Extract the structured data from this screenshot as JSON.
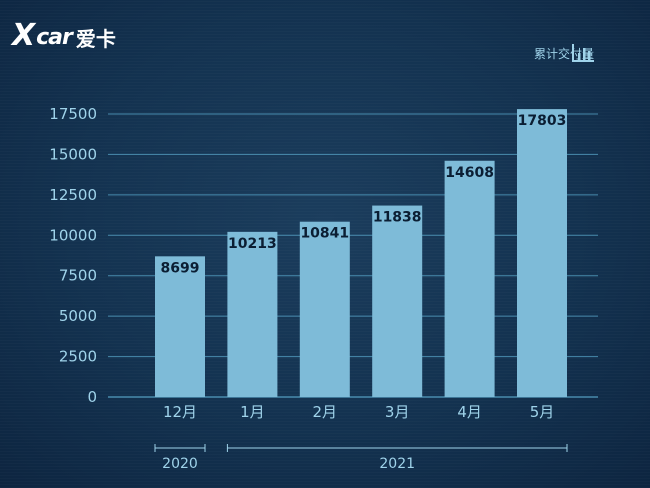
{
  "brand": {
    "x": "X",
    "car": "car",
    "cn": "爱卡"
  },
  "badge": {
    "text": "累计交付量",
    "icon": "bar-chart-icon"
  },
  "colors": {
    "bar": "#7ebbd8",
    "grid": "#5aa9cc",
    "text": "#9fd3ea",
    "label": "#0b1e33"
  },
  "chart_data": {
    "type": "bar",
    "title": "",
    "xlabel": "",
    "ylabel": "",
    "categories": [
      "12月",
      "1月",
      "2月",
      "3月",
      "4月",
      "5月"
    ],
    "values": [
      8699,
      10213,
      10841,
      11838,
      14608,
      17803
    ],
    "data_labels": [
      "8699",
      "10213",
      "10841",
      "11838",
      "14608",
      "17803"
    ],
    "yticks": [
      0,
      2500,
      5000,
      7500,
      10000,
      12500,
      15000,
      17500
    ],
    "ylim": [
      0,
      17500
    ],
    "grid": true,
    "groups": [
      {
        "label": "2020",
        "from": 0,
        "to": 0
      },
      {
        "label": "2021",
        "from": 1,
        "to": 5
      }
    ]
  }
}
